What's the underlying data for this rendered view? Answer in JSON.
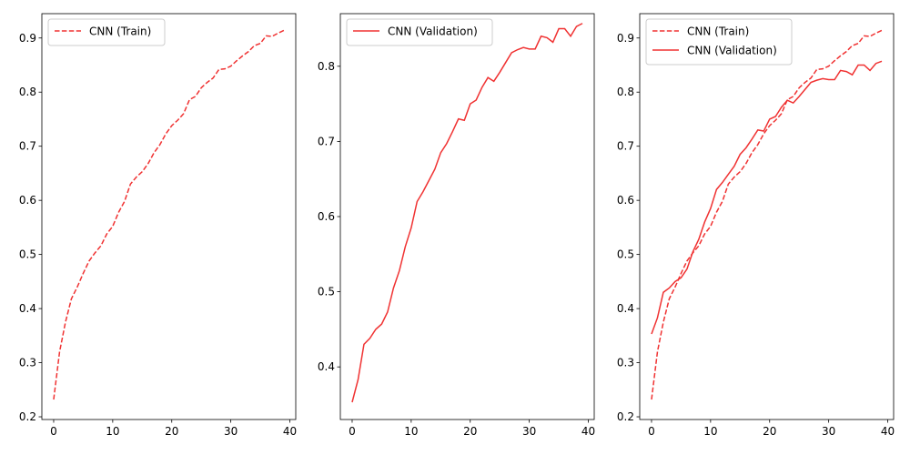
{
  "chart_data": [
    {
      "type": "line",
      "xlim": [
        -2,
        41
      ],
      "ylim": [
        0.195,
        0.945
      ],
      "xticks": [
        0,
        10,
        20,
        30,
        40
      ],
      "yticks": [
        0.2,
        0.3,
        0.4,
        0.5,
        0.6,
        0.7,
        0.8,
        0.9
      ],
      "legend_position": "top-left",
      "series": [
        {
          "name": "CNN (Train)",
          "style": "dashed",
          "color": "#f03232",
          "x": [
            0,
            1,
            2,
            3,
            4,
            5,
            6,
            7,
            8,
            9,
            10,
            11,
            12,
            13,
            14,
            15,
            16,
            17,
            18,
            19,
            20,
            21,
            22,
            23,
            24,
            25,
            26,
            27,
            28,
            29,
            30,
            31,
            32,
            33,
            34,
            35,
            36,
            37,
            38,
            39
          ],
          "y": [
            0.232,
            0.32,
            0.375,
            0.418,
            0.44,
            0.465,
            0.488,
            0.503,
            0.516,
            0.538,
            0.552,
            0.578,
            0.598,
            0.63,
            0.643,
            0.653,
            0.668,
            0.688,
            0.703,
            0.723,
            0.738,
            0.748,
            0.76,
            0.786,
            0.792,
            0.808,
            0.818,
            0.826,
            0.842,
            0.843,
            0.848,
            0.858,
            0.867,
            0.875,
            0.886,
            0.89,
            0.904,
            0.903,
            0.909,
            0.914
          ]
        }
      ]
    },
    {
      "type": "line",
      "xlim": [
        -2,
        41
      ],
      "ylim": [
        0.33,
        0.87
      ],
      "xticks": [
        0,
        10,
        20,
        30,
        40
      ],
      "yticks": [
        0.4,
        0.5,
        0.6,
        0.7,
        0.8
      ],
      "legend_position": "top-left",
      "series": [
        {
          "name": "CNN (Validation)",
          "style": "solid",
          "color": "#f03232",
          "x": [
            0,
            1,
            2,
            3,
            4,
            5,
            6,
            7,
            8,
            9,
            10,
            11,
            12,
            13,
            14,
            15,
            16,
            17,
            18,
            19,
            20,
            21,
            22,
            23,
            24,
            25,
            26,
            27,
            28,
            29,
            30,
            31,
            32,
            33,
            34,
            35,
            36,
            37,
            38,
            39
          ],
          "y": [
            0.353,
            0.383,
            0.43,
            0.438,
            0.45,
            0.457,
            0.473,
            0.505,
            0.528,
            0.56,
            0.585,
            0.62,
            0.633,
            0.648,
            0.663,
            0.685,
            0.697,
            0.713,
            0.73,
            0.728,
            0.75,
            0.755,
            0.772,
            0.785,
            0.78,
            0.792,
            0.805,
            0.818,
            0.822,
            0.825,
            0.823,
            0.823,
            0.84,
            0.838,
            0.832,
            0.85,
            0.85,
            0.84,
            0.853,
            0.857
          ]
        }
      ]
    },
    {
      "type": "line",
      "xlim": [
        -2,
        41
      ],
      "ylim": [
        0.195,
        0.945
      ],
      "xticks": [
        0,
        10,
        20,
        30,
        40
      ],
      "yticks": [
        0.2,
        0.3,
        0.4,
        0.5,
        0.6,
        0.7,
        0.8,
        0.9
      ],
      "legend_position": "top-left",
      "series": [
        {
          "name": "CNN (Train)",
          "style": "dashed",
          "color": "#f03232",
          "x": [
            0,
            1,
            2,
            3,
            4,
            5,
            6,
            7,
            8,
            9,
            10,
            11,
            12,
            13,
            14,
            15,
            16,
            17,
            18,
            19,
            20,
            21,
            22,
            23,
            24,
            25,
            26,
            27,
            28,
            29,
            30,
            31,
            32,
            33,
            34,
            35,
            36,
            37,
            38,
            39
          ],
          "y": [
            0.232,
            0.32,
            0.375,
            0.418,
            0.44,
            0.465,
            0.488,
            0.503,
            0.516,
            0.538,
            0.552,
            0.578,
            0.598,
            0.63,
            0.643,
            0.653,
            0.668,
            0.688,
            0.703,
            0.723,
            0.738,
            0.748,
            0.76,
            0.786,
            0.792,
            0.808,
            0.818,
            0.826,
            0.842,
            0.843,
            0.848,
            0.858,
            0.867,
            0.875,
            0.886,
            0.89,
            0.904,
            0.903,
            0.909,
            0.914
          ]
        },
        {
          "name": "CNN (Validation)",
          "style": "solid",
          "color": "#f03232",
          "x": [
            0,
            1,
            2,
            3,
            4,
            5,
            6,
            7,
            8,
            9,
            10,
            11,
            12,
            13,
            14,
            15,
            16,
            17,
            18,
            19,
            20,
            21,
            22,
            23,
            24,
            25,
            26,
            27,
            28,
            29,
            30,
            31,
            32,
            33,
            34,
            35,
            36,
            37,
            38,
            39
          ],
          "y": [
            0.353,
            0.383,
            0.43,
            0.438,
            0.45,
            0.457,
            0.473,
            0.505,
            0.528,
            0.56,
            0.585,
            0.62,
            0.633,
            0.648,
            0.663,
            0.685,
            0.697,
            0.713,
            0.73,
            0.728,
            0.75,
            0.755,
            0.772,
            0.785,
            0.78,
            0.792,
            0.805,
            0.818,
            0.822,
            0.825,
            0.823,
            0.823,
            0.84,
            0.838,
            0.832,
            0.85,
            0.85,
            0.84,
            0.853,
            0.857
          ]
        }
      ]
    }
  ]
}
